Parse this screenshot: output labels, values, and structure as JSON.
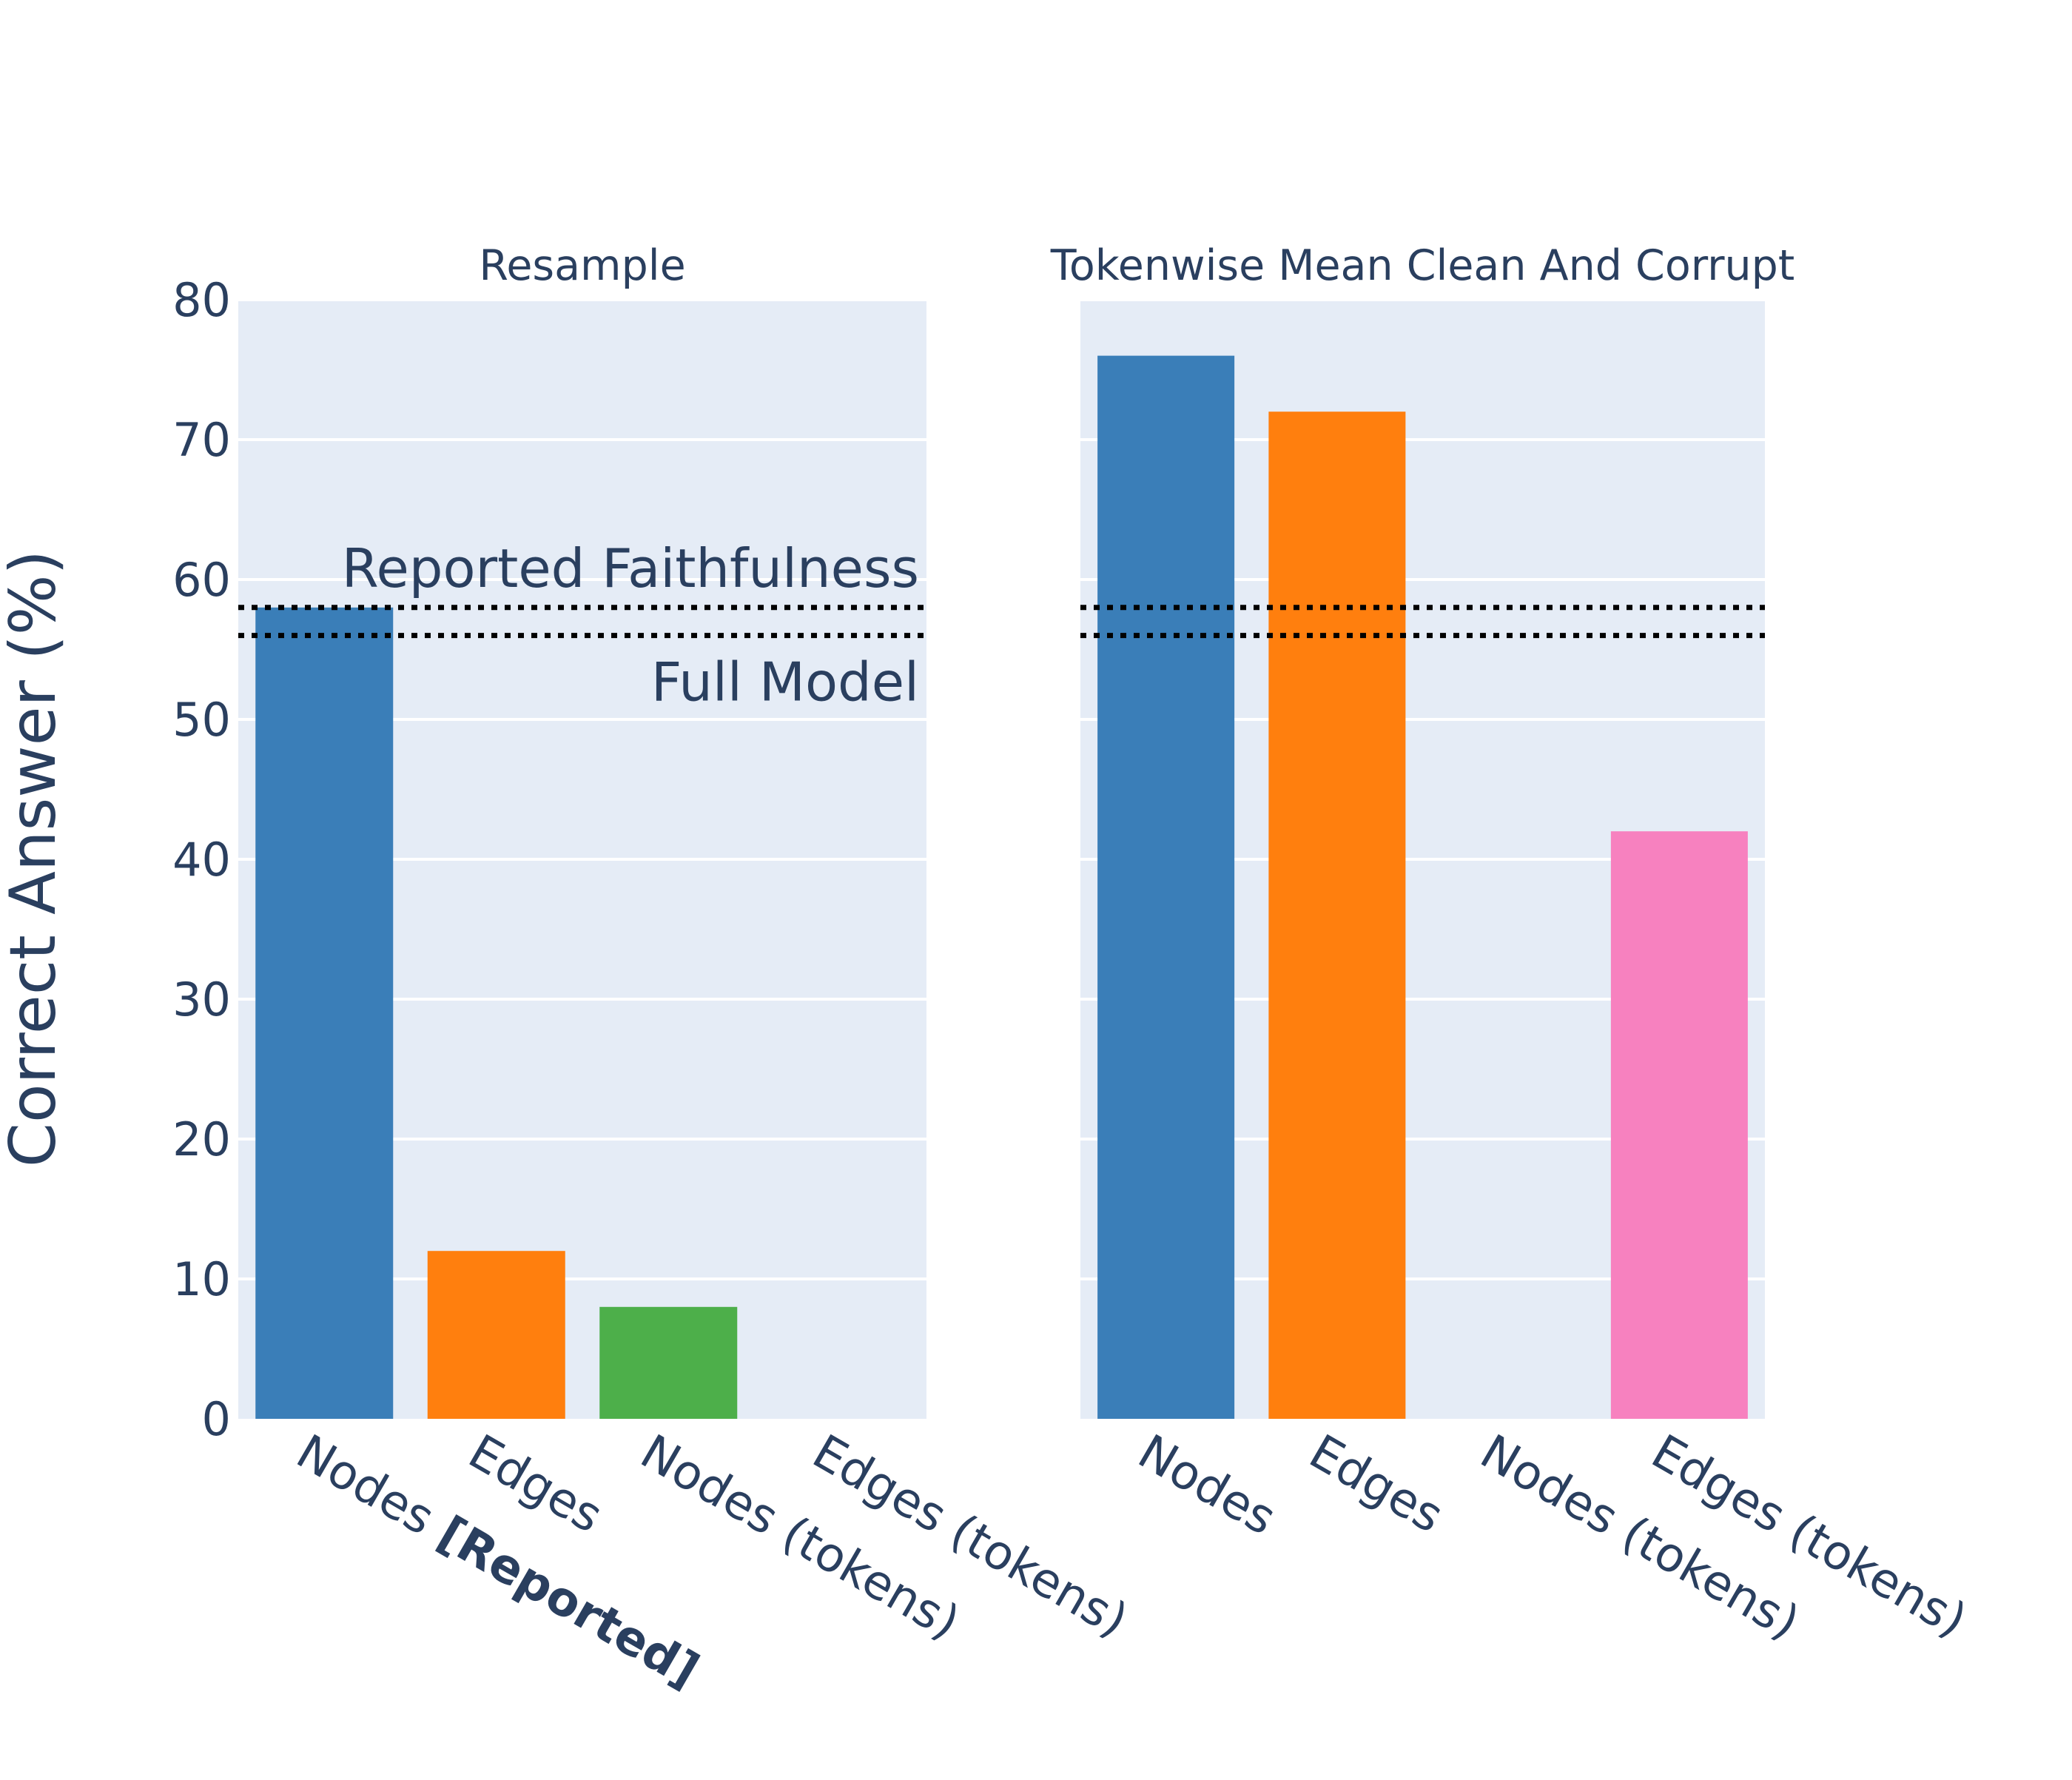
{
  "chart_data": {
    "type": "bar",
    "ylabel": "Correct Answer (%)",
    "ylim": [
      0,
      80
    ],
    "yticks": [
      0,
      10,
      20,
      30,
      40,
      50,
      60,
      70,
      80
    ],
    "grid": true,
    "legend": "none",
    "reference_lines": [
      {
        "name": "Reported Faithfulness",
        "value": 58,
        "style": "dotted",
        "color": "#000000"
      },
      {
        "name": "Full Model",
        "value": 56,
        "style": "dotted",
        "color": "#000000"
      }
    ],
    "panels": [
      {
        "title": "Resample",
        "categories": [
          {
            "text": "Nodes ",
            "bold_suffix": "[Reported]"
          },
          {
            "text": "Edges"
          },
          {
            "text": "Nodes (tokens)"
          },
          {
            "text": "Edges (tokens)"
          }
        ],
        "values": [
          58,
          12,
          8,
          0
        ],
        "colors": [
          "#3a7eb8",
          "#ff7f0e",
          "#4daf4a",
          "#f781bf"
        ],
        "show_annotations": true
      },
      {
        "title": "Tokenwise Mean Clean And Corrupt",
        "categories": [
          {
            "text": "Nodes"
          },
          {
            "text": "Edges"
          },
          {
            "text": "Nodes (tokens)"
          },
          {
            "text": "Edges (tokens)"
          }
        ],
        "values": [
          76,
          72,
          0,
          42
        ],
        "colors": [
          "#3a7eb8",
          "#ff7f0e",
          "#4daf4a",
          "#f781bf"
        ],
        "show_annotations": false
      }
    ]
  }
}
